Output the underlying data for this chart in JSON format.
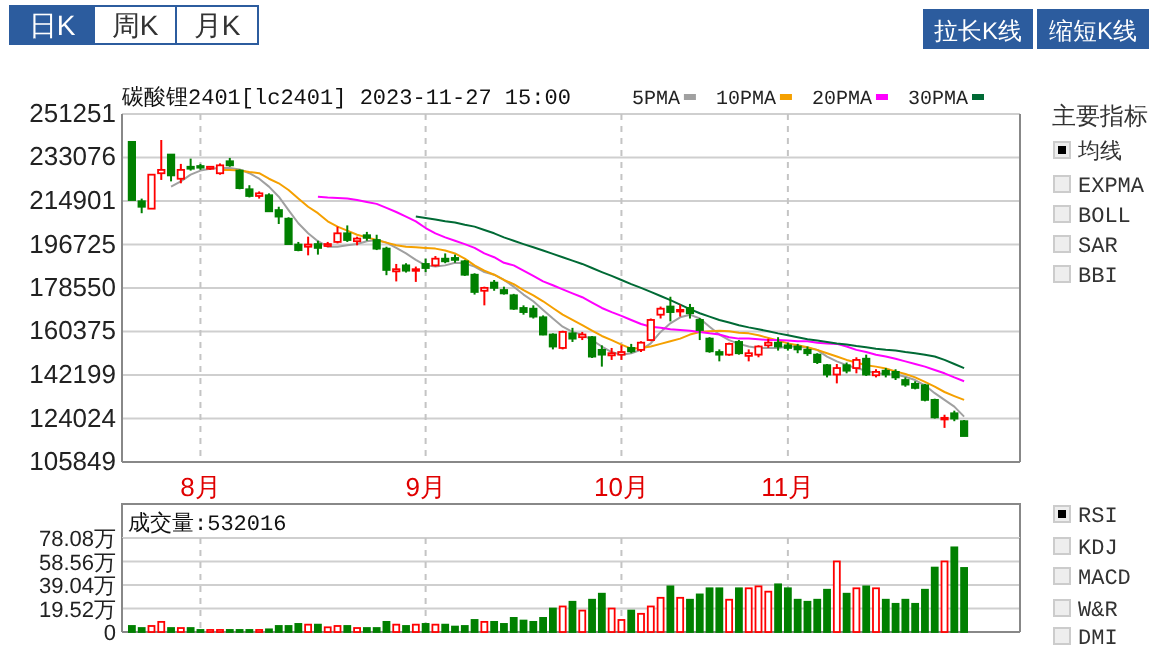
{
  "chart_data": [
    {
      "type": "candlestick",
      "title": "碳酸锂2401[lc2401] 2023-11-27 15:00",
      "categories": [
        null,
        null,
        null,
        null,
        null,
        null,
        null,
        "8月",
        null,
        null,
        null,
        null,
        null,
        null,
        null,
        null,
        null,
        null,
        null,
        null,
        null,
        null,
        null,
        null,
        null,
        null,
        null,
        null,
        null,
        null,
        "9月",
        null,
        null,
        null,
        null,
        null,
        null,
        null,
        null,
        null,
        null,
        null,
        null,
        null,
        null,
        null,
        null,
        null,
        null,
        null,
        "10月",
        null,
        null,
        null,
        null,
        null,
        null,
        null,
        null,
        null,
        null,
        null,
        null,
        null,
        null,
        null,
        null,
        "11月",
        null,
        null,
        null,
        null,
        null,
        null,
        null,
        null,
        null,
        null,
        null,
        null,
        null,
        null,
        null,
        null,
        null,
        null
      ],
      "ohlc": [
        [
          239600,
          239600,
          215300,
          215300
        ],
        [
          214800,
          215900,
          209800,
          212500
        ],
        [
          211700,
          225900,
          211700,
          225900
        ],
        [
          226500,
          240400,
          223700,
          227900
        ],
        [
          234300,
          234300,
          223100,
          225600
        ],
        [
          224200,
          230400,
          222300,
          227900
        ],
        [
          229200,
          232600,
          227600,
          228400
        ],
        [
          229500,
          230400,
          227900,
          229000
        ],
        [
          228400,
          229500,
          227900,
          229200
        ],
        [
          226500,
          230600,
          225900,
          229800
        ],
        [
          231500,
          232900,
          229200,
          229800
        ],
        [
          227600,
          228100,
          219800,
          220300
        ],
        [
          219800,
          221500,
          216400,
          217000
        ],
        [
          217000,
          218900,
          215900,
          218100
        ],
        [
          217300,
          218100,
          210300,
          210600
        ],
        [
          211100,
          212500,
          205300,
          208400
        ],
        [
          207500,
          208100,
          196900,
          196900
        ],
        [
          196700,
          197800,
          193900,
          194400
        ],
        [
          195800,
          200000,
          192200,
          196700
        ],
        [
          196900,
          198300,
          192500,
          195300
        ],
        [
          196100,
          197800,
          195600,
          196900
        ],
        [
          197800,
          204200,
          197200,
          201400
        ],
        [
          201400,
          204700,
          197800,
          198600
        ],
        [
          198100,
          200000,
          196400,
          199200
        ],
        [
          200600,
          202000,
          198300,
          199500
        ],
        [
          198600,
          200800,
          194400,
          195000
        ],
        [
          195000,
          195800,
          183900,
          186100
        ],
        [
          185500,
          188600,
          181300,
          186400
        ],
        [
          188000,
          188900,
          185000,
          185800
        ],
        [
          185800,
          187500,
          181100,
          186400
        ],
        [
          188600,
          190800,
          185200,
          186900
        ],
        [
          188000,
          191900,
          187500,
          190800
        ],
        [
          190800,
          193000,
          188900,
          189700
        ],
        [
          191100,
          192500,
          189100,
          190300
        ],
        [
          189700,
          190300,
          183600,
          184100
        ],
        [
          184100,
          184700,
          175800,
          176900
        ],
        [
          177400,
          179100,
          171300,
          178600
        ],
        [
          180800,
          181900,
          177400,
          178600
        ],
        [
          177700,
          179100,
          175800,
          176300
        ],
        [
          175500,
          176100,
          169400,
          169900
        ],
        [
          170200,
          171300,
          167400,
          168500
        ],
        [
          169900,
          171300,
          165800,
          166600
        ],
        [
          166300,
          167100,
          158800,
          159100
        ],
        [
          159100,
          159600,
          152900,
          154100
        ],
        [
          153500,
          160700,
          152900,
          160200
        ],
        [
          159600,
          161900,
          156000,
          157400
        ],
        [
          158000,
          160200,
          156800,
          159100
        ],
        [
          158000,
          158500,
          149300,
          149900
        ],
        [
          152700,
          154600,
          145700,
          150700
        ],
        [
          150400,
          153500,
          148500,
          151300
        ],
        [
          150700,
          154600,
          148500,
          151800
        ],
        [
          153500,
          155200,
          151300,
          152100
        ],
        [
          152700,
          156300,
          151800,
          155700
        ],
        [
          156800,
          165800,
          156300,
          165200
        ],
        [
          167400,
          170800,
          165800,
          169900
        ],
        [
          170800,
          174900,
          164600,
          168500
        ],
        [
          168800,
          171600,
          166600,
          169400
        ],
        [
          170200,
          171900,
          165800,
          168000
        ],
        [
          165200,
          166000,
          156800,
          161000
        ],
        [
          157400,
          158000,
          151500,
          152100
        ],
        [
          151800,
          152900,
          147900,
          150700
        ],
        [
          150700,
          155700,
          150200,
          155200
        ],
        [
          156000,
          156800,
          150700,
          151300
        ],
        [
          150200,
          152900,
          147900,
          151300
        ],
        [
          150700,
          154600,
          149600,
          154100
        ],
        [
          154600,
          157400,
          153500,
          155700
        ],
        [
          155700,
          158000,
          152400,
          154100
        ],
        [
          154600,
          155700,
          152400,
          153500
        ],
        [
          154100,
          155200,
          151300,
          152900
        ],
        [
          152700,
          154100,
          150200,
          151300
        ],
        [
          150700,
          151300,
          146800,
          147600
        ],
        [
          146300,
          146800,
          141200,
          142400
        ],
        [
          142400,
          146800,
          138700,
          145100
        ],
        [
          146300,
          147400,
          142900,
          144000
        ],
        [
          145100,
          149600,
          142900,
          148500
        ],
        [
          149000,
          150700,
          141800,
          142400
        ],
        [
          142100,
          144600,
          141200,
          143500
        ],
        [
          144000,
          145100,
          141200,
          142400
        ],
        [
          143500,
          144600,
          140100,
          141200
        ],
        [
          140100,
          141200,
          137300,
          138200
        ],
        [
          138500,
          139600,
          136200,
          136800
        ],
        [
          137900,
          138500,
          131200,
          131800
        ],
        [
          131800,
          132300,
          124000,
          124500
        ],
        [
          123700,
          125600,
          120100,
          124300
        ],
        [
          126200,
          127300,
          122900,
          124000
        ],
        [
          122900,
          123400,
          116700,
          116700
        ]
      ],
      "series": [
        {
          "name": "5PMA",
          "type": "line",
          "color": "#a0a0a0",
          "values": [
            null,
            null,
            null,
            null,
            220900,
            223100,
            225900,
            227600,
            228400,
            228700,
            228700,
            228100,
            226500,
            224200,
            220900,
            216700,
            211100,
            205600,
            201400,
            198100,
            195800,
            195800,
            196400,
            196900,
            198100,
            198600,
            197500,
            195300,
            193000,
            190300,
            188000,
            187500,
            188000,
            189100,
            188900,
            187500,
            185200,
            184100,
            181900,
            179100,
            175800,
            173000,
            169400,
            165800,
            162400,
            160200,
            159100,
            156800,
            154100,
            151800,
            150700,
            151300,
            152700,
            155400,
            160200,
            163800,
            166300,
            167400,
            165800,
            162400,
            159100,
            156800,
            155200,
            154100,
            153500,
            153500,
            153500,
            154100,
            154100,
            153500,
            152700,
            149900,
            147900,
            146300,
            145100,
            144000,
            142900,
            142600,
            142400,
            141500,
            140100,
            137900,
            134600,
            131800,
            129000,
            124800
          ]
        },
        {
          "name": "10PMA",
          "type": "line",
          "color": "#f5a000",
          "values": [
            null,
            null,
            null,
            null,
            null,
            null,
            null,
            null,
            null,
            227900,
            227900,
            227600,
            227000,
            226500,
            224200,
            222300,
            219500,
            215900,
            212500,
            209800,
            206400,
            204200,
            202500,
            200800,
            199700,
            198600,
            197500,
            196400,
            195800,
            195600,
            195300,
            195000,
            194200,
            193000,
            190800,
            188000,
            185800,
            184100,
            181900,
            180200,
            177700,
            175500,
            173000,
            170200,
            167400,
            165200,
            163000,
            160700,
            158500,
            156800,
            154900,
            153200,
            153500,
            154100,
            155200,
            156300,
            157400,
            159100,
            160200,
            160500,
            160700,
            160500,
            159900,
            159600,
            158800,
            157700,
            156600,
            155400,
            154600,
            153800,
            152700,
            151300,
            149900,
            148500,
            147400,
            146300,
            145700,
            144900,
            143700,
            142600,
            141200,
            139300,
            137300,
            135100,
            133400,
            131800
          ]
        },
        {
          "name": "20PMA",
          "type": "line",
          "color": "#ff00ff",
          "values": [
            null,
            null,
            null,
            null,
            null,
            null,
            null,
            null,
            null,
            null,
            null,
            null,
            null,
            null,
            null,
            null,
            null,
            null,
            null,
            216700,
            216400,
            216200,
            215900,
            215300,
            214500,
            213700,
            212000,
            210300,
            208400,
            206400,
            203600,
            201400,
            199700,
            198300,
            196900,
            195300,
            193000,
            191400,
            189100,
            188000,
            185800,
            183600,
            181300,
            179700,
            178000,
            176300,
            174700,
            172400,
            170200,
            168500,
            166900,
            165200,
            163500,
            162400,
            161900,
            161300,
            161000,
            160700,
            160200,
            159600,
            159100,
            158000,
            157400,
            157400,
            157100,
            156800,
            156800,
            156600,
            156300,
            156300,
            155700,
            155400,
            155200,
            154100,
            152700,
            151800,
            150700,
            149900,
            149000,
            147900,
            146800,
            145700,
            144300,
            142900,
            141200,
            139600
          ]
        },
        {
          "name": "30PMA",
          "type": "line",
          "color": "#006a35",
          "values": [
            null,
            null,
            null,
            null,
            null,
            null,
            null,
            null,
            null,
            null,
            null,
            null,
            null,
            null,
            null,
            null,
            null,
            null,
            null,
            null,
            null,
            null,
            null,
            null,
            null,
            null,
            null,
            null,
            null,
            208400,
            207800,
            207200,
            206400,
            205900,
            205000,
            204200,
            202800,
            201400,
            199700,
            198300,
            196900,
            195600,
            194200,
            192800,
            191400,
            190000,
            188600,
            186900,
            185200,
            183600,
            181900,
            180200,
            178600,
            176900,
            175200,
            173500,
            171600,
            169700,
            168000,
            166600,
            165200,
            164100,
            163000,
            162100,
            161300,
            160500,
            159600,
            158800,
            158000,
            157100,
            156600,
            156000,
            155400,
            154900,
            154300,
            153800,
            153200,
            152700,
            152400,
            151800,
            151300,
            150700,
            149900,
            148500,
            146800,
            145100
          ]
        }
      ],
      "ylim": [
        105849,
        251251
      ],
      "yticks": [
        105849,
        124024,
        142199,
        160375,
        178550,
        196725,
        214901,
        233076,
        251251
      ],
      "grid": true,
      "legend": "top",
      "annotations": [
        "日K",
        "周K",
        "月K",
        "拉长K线",
        "缩短K线",
        "主要指标",
        "均线",
        "EXPMA",
        "BOLL",
        "SAR",
        "BBI"
      ]
    },
    {
      "type": "bar",
      "title": "成交量:532016",
      "categories": [
        null,
        null,
        null,
        null,
        null,
        null,
        null,
        null,
        null,
        null,
        null,
        null,
        null,
        null,
        null,
        null,
        null,
        null,
        null,
        null,
        null,
        null,
        null,
        null,
        null,
        null,
        null,
        null,
        null,
        null,
        null,
        null,
        null,
        null,
        null,
        null,
        null,
        null,
        null,
        null,
        null,
        null,
        null,
        null,
        null,
        null,
        null,
        null,
        null,
        null,
        null,
        null,
        null,
        null,
        null,
        null,
        null,
        null,
        null,
        null,
        null,
        null,
        null,
        null,
        null,
        null,
        null,
        null,
        null,
        null,
        null,
        null,
        null,
        null,
        null,
        null,
        null,
        null,
        null,
        null,
        null,
        null,
        null,
        null,
        null,
        null
      ],
      "values": [
        5.0,
        3.3,
        5.0,
        8.4,
        3.3,
        3.3,
        3.3,
        1.7,
        1.7,
        1.7,
        1.7,
        1.7,
        1.7,
        1.7,
        2.2,
        5.0,
        5.0,
        6.7,
        6.1,
        6.1,
        3.9,
        5.0,
        5.0,
        3.3,
        3.3,
        3.3,
        8.4,
        6.1,
        5.0,
        6.1,
        6.7,
        6.1,
        6.1,
        4.5,
        5.0,
        10.0,
        8.4,
        8.4,
        6.7,
        11.7,
        9.5,
        8.4,
        11.7,
        19.5,
        21.2,
        25.1,
        17.8,
        26.8,
        31.8,
        19.5,
        10.0,
        17.8,
        15.1,
        21.2,
        28.4,
        37.9,
        28.4,
        26.8,
        31.2,
        36.3,
        36.3,
        26.8,
        36.3,
        36.3,
        37.9,
        33.5,
        39.6,
        36.3,
        26.8,
        25.1,
        26.8,
        35.1,
        58.6,
        31.8,
        36.3,
        37.9,
        36.3,
        26.8,
        23.4,
        26.8,
        23.4,
        35.1,
        53.5,
        58.6,
        70.3,
        53.2
      ],
      "colors": [
        "#008000",
        "#008000",
        "#ff0000",
        "#ff0000",
        "#008000",
        "#ff0000",
        "#008000",
        "#008000",
        "#ff0000",
        "#ff0000",
        "#008000",
        "#008000",
        "#008000",
        "#ff0000",
        "#008000",
        "#008000",
        "#008000",
        "#008000",
        "#ff0000",
        "#008000",
        "#ff0000",
        "#ff0000",
        "#008000",
        "#ff0000",
        "#008000",
        "#008000",
        "#008000",
        "#ff0000",
        "#008000",
        "#ff0000",
        "#008000",
        "#ff0000",
        "#008000",
        "#008000",
        "#008000",
        "#008000",
        "#ff0000",
        "#008000",
        "#008000",
        "#008000",
        "#008000",
        "#008000",
        "#008000",
        "#008000",
        "#ff0000",
        "#008000",
        "#ff0000",
        "#008000",
        "#008000",
        "#ff0000",
        "#ff0000",
        "#008000",
        "#ff0000",
        "#ff0000",
        "#ff0000",
        "#008000",
        "#ff0000",
        "#008000",
        "#008000",
        "#008000",
        "#008000",
        "#ff0000",
        "#008000",
        "#ff0000",
        "#ff0000",
        "#ff0000",
        "#008000",
        "#008000",
        "#008000",
        "#008000",
        "#008000",
        "#008000",
        "#ff0000",
        "#008000",
        "#ff0000",
        "#008000",
        "#ff0000",
        "#008000",
        "#008000",
        "#008000",
        "#008000",
        "#008000",
        "#008000",
        "#ff0000",
        "#008000",
        "#008000"
      ],
      "ylim": [
        0,
        78.08
      ],
      "yticks": [
        0,
        {
          "value": 19.52,
          "label": "19.52万"
        },
        {
          "value": 39.04,
          "label": "39.04万"
        },
        {
          "value": 58.56,
          "label": "58.56万"
        },
        {
          "value": 78.08,
          "label": "78.08万"
        }
      ],
      "grid": true,
      "tick_labels": "y",
      "annotations": [
        "RSI",
        "KDJ",
        "MACD",
        "W&R",
        "DMI"
      ]
    }
  ]
}
